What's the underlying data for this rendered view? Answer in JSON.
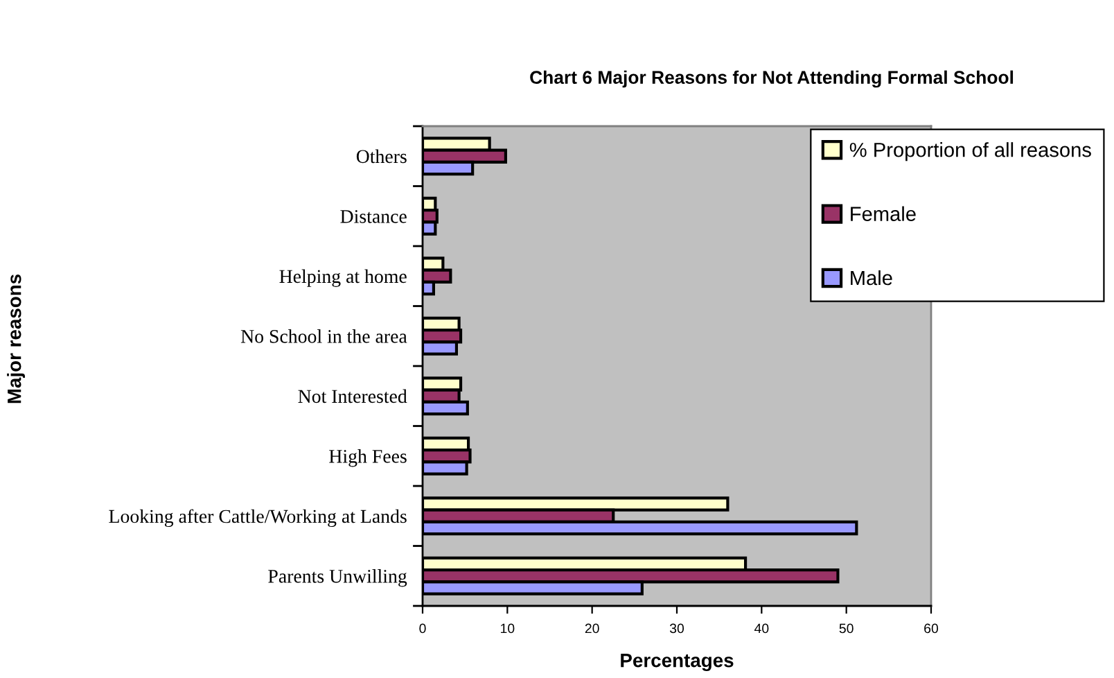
{
  "chart_data": {
    "type": "bar",
    "orientation": "horizontal",
    "title": "Chart 6 Major Reasons for Not Attending Formal School",
    "xlabel": "Percentages",
    "ylabel": "Major reasons",
    "categories": [
      "Others",
      "Distance",
      "Helping at home",
      "No School in the area",
      "Not Interested",
      "High Fees",
      "Looking after Cattle/Working at Lands",
      "Parents Unwilling"
    ],
    "series": [
      {
        "name": "% Proportion of all reasons",
        "color": "#ffffcc",
        "values": [
          7.9,
          1.5,
          2.4,
          4.3,
          4.5,
          5.4,
          36.0,
          38.1
        ]
      },
      {
        "name": "Female",
        "color": "#993366",
        "values": [
          9.8,
          1.7,
          3.3,
          4.5,
          4.3,
          5.6,
          22.5,
          49.0
        ]
      },
      {
        "name": "Male",
        "color": "#9999ff",
        "values": [
          5.9,
          1.5,
          1.3,
          4.0,
          5.3,
          5.2,
          51.2,
          25.9
        ]
      }
    ],
    "xlim": [
      0,
      60
    ],
    "xticks": [
      0,
      10,
      20,
      30,
      40,
      50,
      60
    ],
    "grid": false,
    "legend": "right"
  }
}
